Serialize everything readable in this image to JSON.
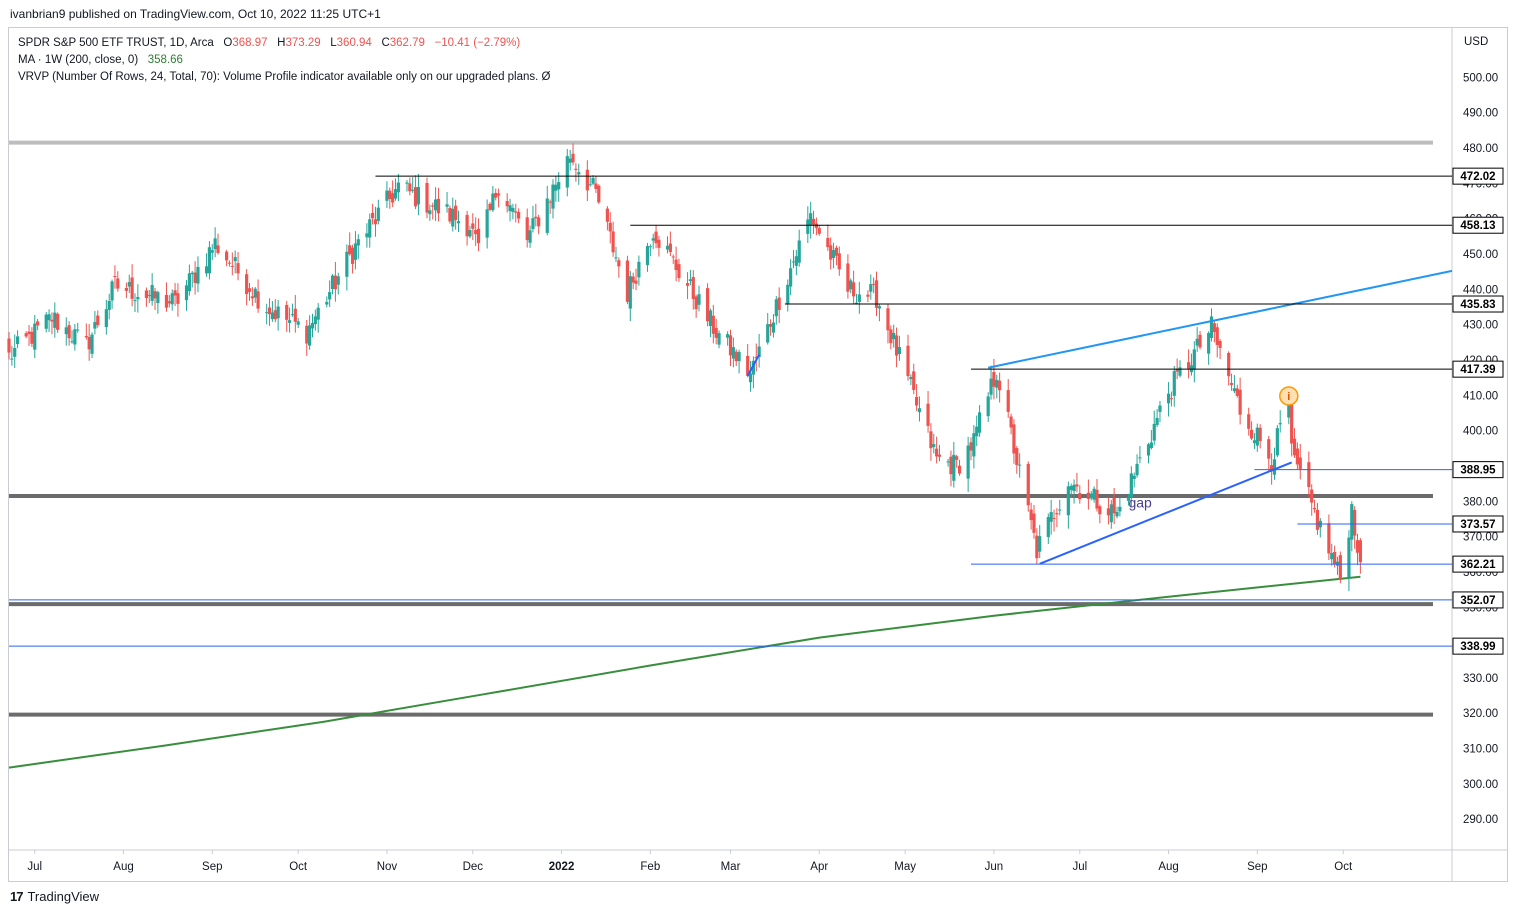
{
  "header": {
    "publisher_line": "ivanbrian9 published on TradingView.com, Oct 10, 2022 11:25 UTC+1"
  },
  "legend": {
    "symbol_line": "SPDR S&P 500 ETF TRUST, 1D, Arca",
    "o_label": "O",
    "o_value": "368.97",
    "h_label": "H",
    "h_value": "373.29",
    "l_label": "L",
    "l_value": "360.94",
    "c_label": "C",
    "c_value": "362.79",
    "change": "−10.41 (−2.79%)",
    "ma_line": "MA · 1W (200, close, 0)",
    "ma_value": "358.66",
    "vrvp_line": "VRVP (Number Of Rows, 24, Total, 70): Volume Profile indicator available only on our upgraded plans.  Ø"
  },
  "footer": {
    "brand": "TradingView",
    "logo_mark": "17"
  },
  "colors": {
    "up": "#26a69a",
    "down": "#ef5350",
    "ma": "#388e3c",
    "trend": "#2196f3",
    "hline": "#000000",
    "support_blue": "#2962ff",
    "thick_gray": "#6b6b6b"
  },
  "chart_data": {
    "type": "candlestick",
    "currency_label": "USD",
    "ylim": [
      280,
      508
    ],
    "y_ticks": [
      "500.00",
      "490.00",
      "480.00",
      "470.00",
      "460.00",
      "450.00",
      "440.00",
      "430.00",
      "420.00",
      "410.00",
      "400.00",
      "390.00",
      "380.00",
      "370.00",
      "360.00",
      "350.00",
      "340.00",
      "330.00",
      "320.00",
      "310.00",
      "300.00",
      "290.00"
    ],
    "y_tick_values": [
      500,
      490,
      480,
      470,
      460,
      450,
      440,
      430,
      420,
      410,
      400,
      390,
      380,
      370,
      360,
      350,
      340,
      330,
      320,
      310,
      300,
      290
    ],
    "x_ticks": [
      {
        "label": "Jul",
        "date": "2021-07-01",
        "bold": false
      },
      {
        "label": "Aug",
        "date": "2021-08-01",
        "bold": false
      },
      {
        "label": "Sep",
        "date": "2021-09-01",
        "bold": false
      },
      {
        "label": "Oct",
        "date": "2021-10-01",
        "bold": false
      },
      {
        "label": "Nov",
        "date": "2021-11-01",
        "bold": false
      },
      {
        "label": "Dec",
        "date": "2021-12-01",
        "bold": false
      },
      {
        "label": "2022",
        "date": "2022-01-01",
        "bold": true
      },
      {
        "label": "Feb",
        "date": "2022-02-01",
        "bold": false
      },
      {
        "label": "Mar",
        "date": "2022-03-01",
        "bold": false
      },
      {
        "label": "Apr",
        "date": "2022-04-01",
        "bold": false
      },
      {
        "label": "May",
        "date": "2022-05-01",
        "bold": false
      },
      {
        "label": "Jun",
        "date": "2022-06-01",
        "bold": false
      },
      {
        "label": "Jul",
        "date": "2022-07-01",
        "bold": false
      },
      {
        "label": "Aug",
        "date": "2022-08-01",
        "bold": false
      },
      {
        "label": "Sep",
        "date": "2022-09-01",
        "bold": false
      },
      {
        "label": "Oct",
        "date": "2022-10-01",
        "bold": false
      }
    ],
    "x_range": [
      "2021-06-22",
      "2022-11-08"
    ],
    "price_levels": [
      {
        "label": "472.02",
        "value": 472.02,
        "from": "2021-10-28"
      },
      {
        "label": "458.13",
        "value": 458.13,
        "from": "2022-01-25"
      },
      {
        "label": "435.83",
        "value": 435.83,
        "from": "2022-03-20"
      },
      {
        "label": "417.39",
        "value": 417.39,
        "from": "2022-05-24"
      },
      {
        "label": "388.95",
        "value": 388.95,
        "from": "2022-08-31",
        "color": "blue"
      },
      {
        "label": "373.57",
        "value": 373.57,
        "from": "2022-09-15",
        "color": "blue"
      },
      {
        "label": "362.21",
        "value": 362.21,
        "from": "2022-05-24",
        "color": "blue"
      },
      {
        "label": "352.07",
        "value": 352.07,
        "from": "2021-06-22",
        "color": "blue"
      },
      {
        "label": "338.99",
        "value": 338.99,
        "from": "2021-06-22",
        "color": "blue"
      }
    ],
    "thick_lines": [
      {
        "value": 481.5,
        "color": "light"
      },
      {
        "value": 381.5,
        "color": "dark"
      },
      {
        "value": 350.9,
        "color": "dark"
      },
      {
        "value": 319.6,
        "color": "dark"
      }
    ],
    "trendlines": [
      {
        "from": {
          "date": "2022-05-30",
          "value": 417.8
        },
        "to": {
          "date": "2022-11-08",
          "value": 445.2
        },
        "color": "light-blue"
      },
      {
        "from": {
          "date": "2022-06-17",
          "value": 362.3
        },
        "to": {
          "date": "2022-09-13",
          "value": 391.0
        },
        "color": "blue"
      },
      {
        "from": {
          "date": "2022-03-07",
          "value": 415.5
        },
        "to": {
          "date": "2022-03-11",
          "value": 421.5
        },
        "color": "blue"
      }
    ],
    "annotations": [
      {
        "text": "gap",
        "date": "2022-07-18",
        "value": 378.2
      },
      {
        "text": "i",
        "date": "2022-09-12",
        "value": 409.8,
        "type": "event-marker"
      }
    ],
    "moving_average": {
      "name": "MA 1W 200",
      "points": [
        {
          "date": "2021-06-22",
          "value": 304.6
        },
        {
          "date": "2021-08-15",
          "value": 310.8
        },
        {
          "date": "2021-10-10",
          "value": 317.6
        },
        {
          "date": "2021-12-05",
          "value": 325.4
        },
        {
          "date": "2022-02-01",
          "value": 333.5
        },
        {
          "date": "2022-04-01",
          "value": 341.4
        },
        {
          "date": "2022-06-01",
          "value": 347.6
        },
        {
          "date": "2022-08-01",
          "value": 353.0
        },
        {
          "date": "2022-10-07",
          "value": 358.66
        }
      ]
    },
    "anchors": [
      {
        "date": "2021-06-22",
        "close": 421.0
      },
      {
        "date": "2021-07-07",
        "close": 432.0
      },
      {
        "date": "2021-07-19",
        "close": 424.0
      },
      {
        "date": "2021-07-29",
        "close": 441.0
      },
      {
        "date": "2021-08-19",
        "close": 436.0
      },
      {
        "date": "2021-09-02",
        "close": 453.0
      },
      {
        "date": "2021-09-20",
        "close": 435.0
      },
      {
        "date": "2021-10-04",
        "close": 428.0
      },
      {
        "date": "2021-10-21",
        "close": 452.0
      },
      {
        "date": "2021-11-05",
        "close": 469.0
      },
      {
        "date": "2021-11-30",
        "close": 458.0
      },
      {
        "date": "2021-12-03",
        "close": 451.0
      },
      {
        "date": "2021-12-10",
        "close": 470.0
      },
      {
        "date": "2021-12-20",
        "close": 454.0
      },
      {
        "date": "2022-01-04",
        "close": 478.0
      },
      {
        "date": "2022-01-13",
        "close": 467.0
      },
      {
        "date": "2022-01-24",
        "close": 439.0
      },
      {
        "date": "2022-02-02",
        "close": 457.0
      },
      {
        "date": "2022-02-24",
        "close": 428.0
      },
      {
        "date": "2022-03-08",
        "close": 416.0
      },
      {
        "date": "2022-03-29",
        "close": 461.0
      },
      {
        "date": "2022-04-11",
        "close": 440.0
      },
      {
        "date": "2022-04-21",
        "close": 438.0
      },
      {
        "date": "2022-05-12",
        "close": 392.0
      },
      {
        "date": "2022-05-19",
        "close": 390.0
      },
      {
        "date": "2022-05-25",
        "close": 397.0
      },
      {
        "date": "2022-06-02",
        "close": 417.0
      },
      {
        "date": "2022-06-16",
        "close": 366.0
      },
      {
        "date": "2022-06-27",
        "close": 386.0
      },
      {
        "date": "2022-07-14",
        "close": 376.0
      },
      {
        "date": "2022-08-01",
        "close": 411.0
      },
      {
        "date": "2022-08-16",
        "close": 429.0
      },
      {
        "date": "2022-08-26",
        "close": 406.0
      },
      {
        "date": "2022-09-06",
        "close": 392.0
      },
      {
        "date": "2022-09-12",
        "close": 408.0
      },
      {
        "date": "2022-09-13",
        "close": 393.0
      },
      {
        "date": "2022-09-30",
        "close": 358.0
      },
      {
        "date": "2022-10-04",
        "close": 378.0
      },
      {
        "date": "2022-10-07",
        "close": 362.79
      }
    ]
  }
}
